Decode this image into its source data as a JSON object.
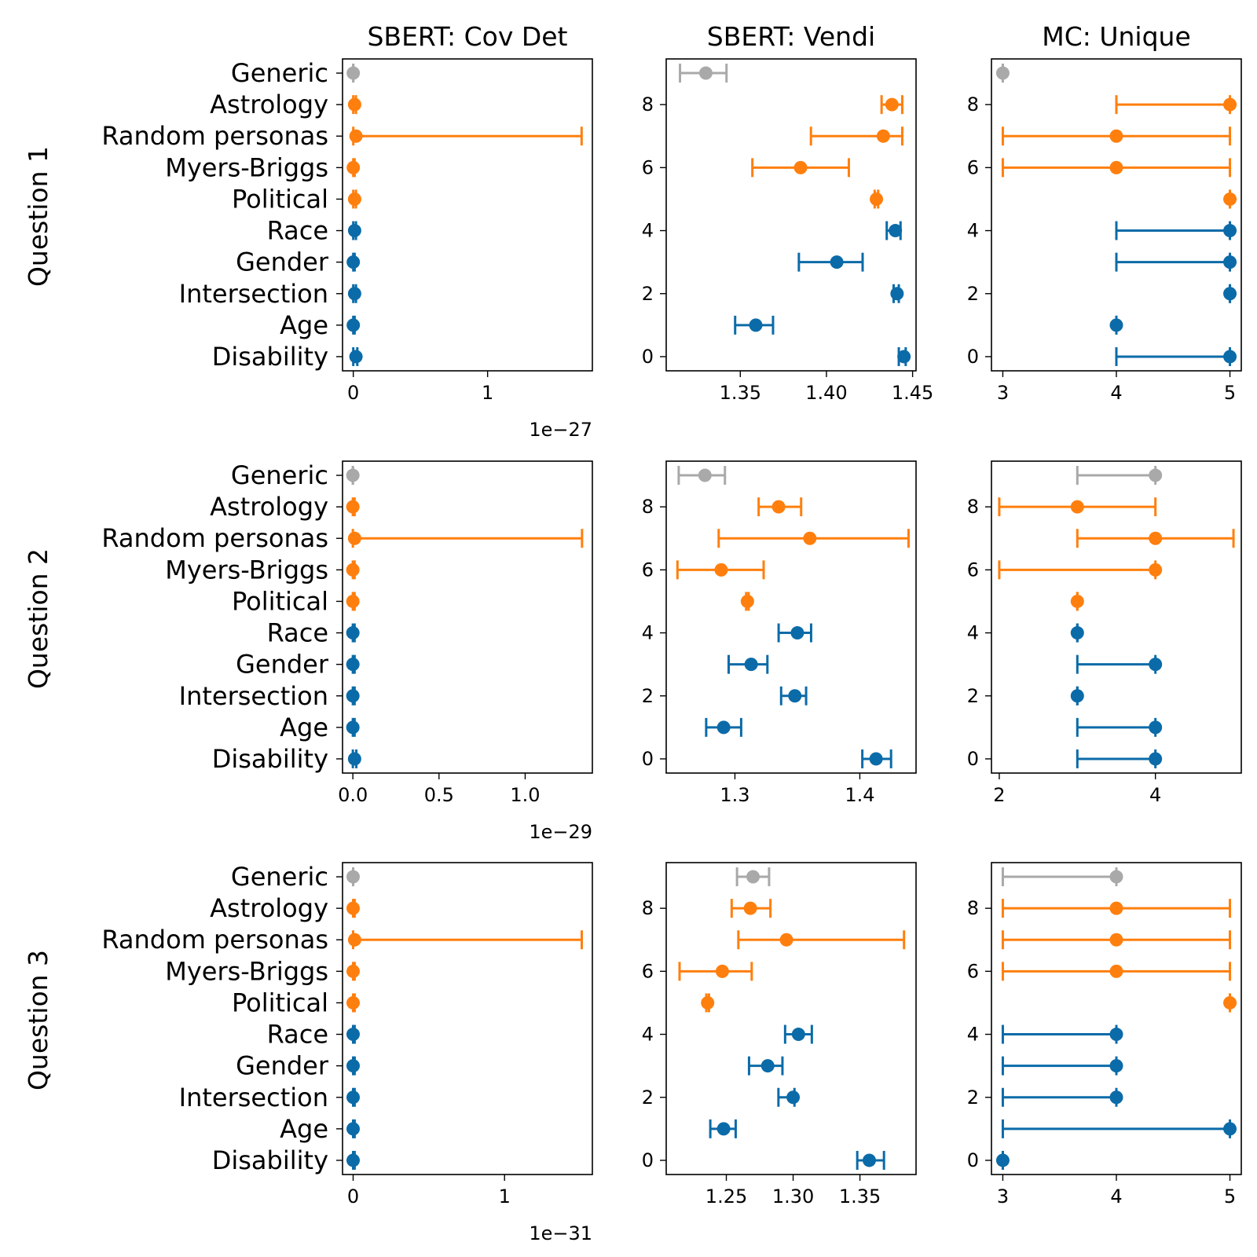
{
  "chart_data": {
    "type": "scatter",
    "description_free": true,
    "row_labels": [
      "Question 1",
      "Question 2",
      "Question 3"
    ],
    "column_titles": [
      "SBERT: Cov Det",
      "SBERT: Vendi",
      "MC: Unique"
    ],
    "categories_top_to_bottom": [
      "Generic",
      "Astrology",
      "Random personas",
      "Myers-Briggs",
      "Political",
      "Race",
      "Gender",
      "Intersection",
      "Age",
      "Disability"
    ],
    "colors": {
      "Generic": "#a9a9a9",
      "Astrology": "#ff7f0e",
      "Random personas": "#ff7f0e",
      "Myers-Briggs": "#ff7f0e",
      "Political": "#ff7f0e",
      "Race": "#0b6ba8",
      "Gender": "#0b6ba8",
      "Intersection": "#0b6ba8",
      "Age": "#0b6ba8",
      "Disability": "#0b6ba8"
    },
    "panels": [
      {
        "row": 0,
        "col": 0,
        "xlim": [
          -0.08,
          1.78
        ],
        "xticks": [
          0,
          1
        ],
        "xtick_labels": [
          "0",
          "1"
        ],
        "offset_label": "1e−27",
        "show_yticks": false,
        "points": [
          {
            "category": "Generic",
            "x": 0.0,
            "lo": 0.0,
            "hi": 0.0
          },
          {
            "category": "Astrology",
            "x": 0.01,
            "lo": 0.0,
            "hi": 0.02
          },
          {
            "category": "Random personas",
            "x": 0.02,
            "lo": 0.0,
            "hi": 1.7
          },
          {
            "category": "Myers-Briggs",
            "x": 0.0,
            "lo": 0.0,
            "hi": 0.01
          },
          {
            "category": "Political",
            "x": 0.01,
            "lo": 0.0,
            "hi": 0.02
          },
          {
            "category": "Race",
            "x": 0.01,
            "lo": 0.0,
            "hi": 0.02
          },
          {
            "category": "Gender",
            "x": 0.0,
            "lo": 0.0,
            "hi": 0.01
          },
          {
            "category": "Intersection",
            "x": 0.01,
            "lo": 0.0,
            "hi": 0.02
          },
          {
            "category": "Age",
            "x": 0.0,
            "lo": 0.0,
            "hi": 0.01
          },
          {
            "category": "Disability",
            "x": 0.02,
            "lo": 0.0,
            "hi": 0.03
          }
        ]
      },
      {
        "row": 0,
        "col": 1,
        "xlim": [
          1.307,
          1.452
        ],
        "xticks": [
          1.35,
          1.4,
          1.45
        ],
        "xtick_labels": [
          "1.35",
          "1.40",
          "1.45"
        ],
        "offset_label": "",
        "show_yticks": true,
        "yticks": [
          0,
          2,
          4,
          6,
          8
        ],
        "points": [
          {
            "category": "Generic",
            "x": 1.33,
            "lo": 1.315,
            "hi": 1.342
          },
          {
            "category": "Astrology",
            "x": 1.438,
            "lo": 1.432,
            "hi": 1.444
          },
          {
            "category": "Random personas",
            "x": 1.433,
            "lo": 1.391,
            "hi": 1.444
          },
          {
            "category": "Myers-Briggs",
            "x": 1.385,
            "lo": 1.357,
            "hi": 1.413
          },
          {
            "category": "Political",
            "x": 1.429,
            "lo": 1.428,
            "hi": 1.43
          },
          {
            "category": "Race",
            "x": 1.44,
            "lo": 1.435,
            "hi": 1.443
          },
          {
            "category": "Gender",
            "x": 1.406,
            "lo": 1.384,
            "hi": 1.421
          },
          {
            "category": "Intersection",
            "x": 1.441,
            "lo": 1.439,
            "hi": 1.442
          },
          {
            "category": "Age",
            "x": 1.359,
            "lo": 1.347,
            "hi": 1.369
          },
          {
            "category": "Disability",
            "x": 1.445,
            "lo": 1.442,
            "hi": 1.446
          }
        ]
      },
      {
        "row": 0,
        "col": 2,
        "xlim": [
          2.9,
          5.1
        ],
        "xticks": [
          3,
          4,
          5
        ],
        "xtick_labels": [
          "3",
          "4",
          "5"
        ],
        "offset_label": "",
        "show_yticks": true,
        "yticks": [
          0,
          2,
          4,
          6,
          8
        ],
        "points": [
          {
            "category": "Generic",
            "x": 3,
            "lo": 3,
            "hi": 3
          },
          {
            "category": "Astrology",
            "x": 5,
            "lo": 4,
            "hi": 5
          },
          {
            "category": "Random personas",
            "x": 4,
            "lo": 3,
            "hi": 5
          },
          {
            "category": "Myers-Briggs",
            "x": 4,
            "lo": 3,
            "hi": 5
          },
          {
            "category": "Political",
            "x": 5,
            "lo": 5,
            "hi": 5
          },
          {
            "category": "Race",
            "x": 5,
            "lo": 4,
            "hi": 5
          },
          {
            "category": "Gender",
            "x": 5,
            "lo": 4,
            "hi": 5
          },
          {
            "category": "Intersection",
            "x": 5,
            "lo": 5,
            "hi": 5
          },
          {
            "category": "Age",
            "x": 4,
            "lo": 4,
            "hi": 4
          },
          {
            "category": "Disability",
            "x": 5,
            "lo": 4,
            "hi": 5
          }
        ]
      },
      {
        "row": 1,
        "col": 0,
        "xlim": [
          -0.06,
          1.39
        ],
        "xticks": [
          0.0,
          0.5,
          1.0
        ],
        "xtick_labels": [
          "0.0",
          "0.5",
          "1.0"
        ],
        "offset_label": "1e−29",
        "show_yticks": false,
        "points": [
          {
            "category": "Generic",
            "x": 0.0,
            "lo": 0.0,
            "hi": 0.0
          },
          {
            "category": "Astrology",
            "x": 0.0,
            "lo": 0.0,
            "hi": 0.01
          },
          {
            "category": "Random personas",
            "x": 0.01,
            "lo": 0.0,
            "hi": 1.33
          },
          {
            "category": "Myers-Briggs",
            "x": 0.0,
            "lo": 0.0,
            "hi": 0.01
          },
          {
            "category": "Political",
            "x": 0.0,
            "lo": 0.0,
            "hi": 0.01
          },
          {
            "category": "Race",
            "x": 0.0,
            "lo": 0.0,
            "hi": 0.01
          },
          {
            "category": "Gender",
            "x": 0.0,
            "lo": 0.0,
            "hi": 0.01
          },
          {
            "category": "Intersection",
            "x": 0.0,
            "lo": 0.0,
            "hi": 0.01
          },
          {
            "category": "Age",
            "x": 0.0,
            "lo": 0.0,
            "hi": 0.01
          },
          {
            "category": "Disability",
            "x": 0.01,
            "lo": 0.0,
            "hi": 0.02
          }
        ]
      },
      {
        "row": 1,
        "col": 1,
        "xlim": [
          1.245,
          1.445
        ],
        "xticks": [
          1.3,
          1.4
        ],
        "xtick_labels": [
          "1.3",
          "1.4"
        ],
        "offset_label": "",
        "show_yticks": true,
        "yticks": [
          0,
          2,
          4,
          6,
          8
        ],
        "points": [
          {
            "category": "Generic",
            "x": 1.276,
            "lo": 1.255,
            "hi": 1.292
          },
          {
            "category": "Astrology",
            "x": 1.335,
            "lo": 1.319,
            "hi": 1.353
          },
          {
            "category": "Random personas",
            "x": 1.36,
            "lo": 1.287,
            "hi": 1.439
          },
          {
            "category": "Myers-Briggs",
            "x": 1.289,
            "lo": 1.254,
            "hi": 1.323
          },
          {
            "category": "Political",
            "x": 1.31,
            "lo": 1.309,
            "hi": 1.311
          },
          {
            "category": "Race",
            "x": 1.35,
            "lo": 1.335,
            "hi": 1.361
          },
          {
            "category": "Gender",
            "x": 1.313,
            "lo": 1.295,
            "hi": 1.326
          },
          {
            "category": "Intersection",
            "x": 1.348,
            "lo": 1.337,
            "hi": 1.357
          },
          {
            "category": "Age",
            "x": 1.291,
            "lo": 1.277,
            "hi": 1.305
          },
          {
            "category": "Disability",
            "x": 1.413,
            "lo": 1.402,
            "hi": 1.425
          }
        ]
      },
      {
        "row": 1,
        "col": 2,
        "xlim": [
          1.9,
          5.1
        ],
        "xticks": [
          2,
          4
        ],
        "xtick_labels": [
          "2",
          "4"
        ],
        "offset_label": "",
        "show_yticks": true,
        "yticks": [
          0,
          2,
          4,
          6,
          8
        ],
        "points": [
          {
            "category": "Generic",
            "x": 4,
            "lo": 3,
            "hi": 4
          },
          {
            "category": "Astrology",
            "x": 3,
            "lo": 2,
            "hi": 4
          },
          {
            "category": "Random personas",
            "x": 4,
            "lo": 3,
            "hi": 5
          },
          {
            "category": "Myers-Briggs",
            "x": 4,
            "lo": 2,
            "hi": 4
          },
          {
            "category": "Political",
            "x": 3,
            "lo": 3,
            "hi": 3
          },
          {
            "category": "Race",
            "x": 3,
            "lo": 3,
            "hi": 3
          },
          {
            "category": "Gender",
            "x": 4,
            "lo": 3,
            "hi": 4
          },
          {
            "category": "Intersection",
            "x": 3,
            "lo": 3,
            "hi": 3
          },
          {
            "category": "Age",
            "x": 4,
            "lo": 3,
            "hi": 4
          },
          {
            "category": "Disability",
            "x": 4,
            "lo": 3,
            "hi": 4
          }
        ]
      },
      {
        "row": 2,
        "col": 0,
        "xlim": [
          -0.07,
          1.58
        ],
        "xticks": [
          0,
          1
        ],
        "xtick_labels": [
          "0",
          "1"
        ],
        "offset_label": "1e−31",
        "show_yticks": false,
        "points": [
          {
            "category": "Generic",
            "x": 0.0,
            "lo": 0.0,
            "hi": 0.0
          },
          {
            "category": "Astrology",
            "x": 0.0,
            "lo": 0.0,
            "hi": 0.01
          },
          {
            "category": "Random personas",
            "x": 0.01,
            "lo": 0.0,
            "hi": 1.51
          },
          {
            "category": "Myers-Briggs",
            "x": 0.0,
            "lo": 0.0,
            "hi": 0.01
          },
          {
            "category": "Political",
            "x": 0.0,
            "lo": 0.0,
            "hi": 0.01
          },
          {
            "category": "Race",
            "x": 0.0,
            "lo": 0.0,
            "hi": 0.01
          },
          {
            "category": "Gender",
            "x": 0.0,
            "lo": 0.0,
            "hi": 0.01
          },
          {
            "category": "Intersection",
            "x": 0.0,
            "lo": 0.0,
            "hi": 0.01
          },
          {
            "category": "Age",
            "x": 0.0,
            "lo": 0.0,
            "hi": 0.01
          },
          {
            "category": "Disability",
            "x": 0.0,
            "lo": 0.0,
            "hi": 0.01
          }
        ]
      },
      {
        "row": 2,
        "col": 1,
        "xlim": [
          1.205,
          1.392
        ],
        "xticks": [
          1.25,
          1.3,
          1.35
        ],
        "xtick_labels": [
          "1.25",
          "1.30",
          "1.35"
        ],
        "offset_label": "",
        "show_yticks": true,
        "yticks": [
          0,
          2,
          4,
          6,
          8
        ],
        "points": [
          {
            "category": "Generic",
            "x": 1.27,
            "lo": 1.258,
            "hi": 1.282
          },
          {
            "category": "Astrology",
            "x": 1.268,
            "lo": 1.254,
            "hi": 1.283
          },
          {
            "category": "Random personas",
            "x": 1.295,
            "lo": 1.259,
            "hi": 1.383
          },
          {
            "category": "Myers-Briggs",
            "x": 1.247,
            "lo": 1.215,
            "hi": 1.269
          },
          {
            "category": "Political",
            "x": 1.236,
            "lo": 1.235,
            "hi": 1.237
          },
          {
            "category": "Race",
            "x": 1.304,
            "lo": 1.294,
            "hi": 1.314
          },
          {
            "category": "Gender",
            "x": 1.281,
            "lo": 1.267,
            "hi": 1.292
          },
          {
            "category": "Intersection",
            "x": 1.3,
            "lo": 1.289,
            "hi": 1.301
          },
          {
            "category": "Age",
            "x": 1.248,
            "lo": 1.238,
            "hi": 1.257
          },
          {
            "category": "Disability",
            "x": 1.357,
            "lo": 1.348,
            "hi": 1.368
          }
        ]
      },
      {
        "row": 2,
        "col": 2,
        "xlim": [
          2.9,
          5.1
        ],
        "xticks": [
          3,
          4,
          5
        ],
        "xtick_labels": [
          "3",
          "4",
          "5"
        ],
        "offset_label": "",
        "show_yticks": true,
        "yticks": [
          0,
          2,
          4,
          6,
          8
        ],
        "points": [
          {
            "category": "Generic",
            "x": 4,
            "lo": 3,
            "hi": 4
          },
          {
            "category": "Astrology",
            "x": 4,
            "lo": 3,
            "hi": 5
          },
          {
            "category": "Random personas",
            "x": 4,
            "lo": 3,
            "hi": 5
          },
          {
            "category": "Myers-Briggs",
            "x": 4,
            "lo": 3,
            "hi": 5
          },
          {
            "category": "Political",
            "x": 5,
            "lo": 5,
            "hi": 5
          },
          {
            "category": "Race",
            "x": 4,
            "lo": 3,
            "hi": 4
          },
          {
            "category": "Gender",
            "x": 4,
            "lo": 3,
            "hi": 4
          },
          {
            "category": "Intersection",
            "x": 4,
            "lo": 3,
            "hi": 4
          },
          {
            "category": "Age",
            "x": 5,
            "lo": 3,
            "hi": 5
          },
          {
            "category": "Disability",
            "x": 3,
            "lo": 3,
            "hi": 3
          }
        ]
      }
    ]
  }
}
